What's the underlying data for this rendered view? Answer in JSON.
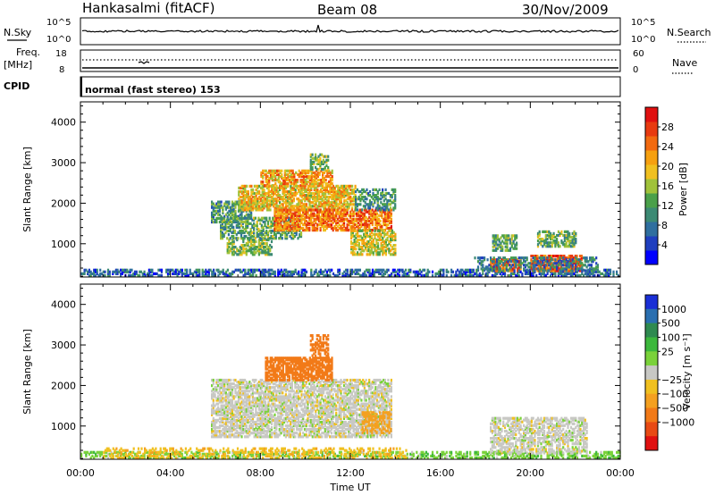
{
  "header": {
    "station": "Hankasalmi (fitACF)",
    "beam": "Beam 08",
    "date": "30/Nov/2009"
  },
  "strips": {
    "nsky_label": "N.Sky",
    "nsky_top": "10^5",
    "nsky_bottom": "10^0",
    "nsearch_label": "N.Search",
    "freq_label": "Freq.",
    "freq_unit": "[MHz]",
    "freq_top": "18",
    "freq_bottom": "8",
    "nave_top": "60",
    "nave_bottom": "0",
    "nave_label": "Nave",
    "cpid_label": "CPID",
    "cpid_text": "normal (fast stereo) 153"
  },
  "colors": {
    "power_scale": [
      "#0000ff",
      "#1f3fbf",
      "#2f6f9f",
      "#3c8a74",
      "#4aa04a",
      "#a0c23a",
      "#f0c020",
      "#f6a010",
      "#f26a10",
      "#e83a10",
      "#e01010"
    ],
    "velocity_scale": [
      "#1a2fd6",
      "#2a6fb0",
      "#2f8a50",
      "#3cb83c",
      "#7ad23a",
      "#c8c8c4",
      "#f0c020",
      "#f4a020",
      "#f27a18",
      "#e84a14",
      "#e01010"
    ]
  },
  "chart_data": [
    {
      "type": "heatmap",
      "title": "",
      "ylabel": "Slant Range [km]",
      "xlabel": "",
      "ylim": [
        180,
        4500
      ],
      "yticks": [
        1000,
        2000,
        3000,
        4000
      ],
      "x_ticks": [
        "00:00",
        "04:00",
        "08:00",
        "12:00",
        "16:00",
        "20:00",
        "00:00"
      ],
      "x_range_hours": [
        0,
        24
      ],
      "colorbar": {
        "label": "Power [dB]",
        "range": [
          0,
          32
        ],
        "ticks": [
          "4",
          "8",
          "12",
          "16",
          "20",
          "24",
          "28"
        ]
      },
      "regions": [
        {
          "t0": 0.0,
          "t1": 24.0,
          "r0": 180,
          "r1": 320,
          "value": 6,
          "density": 0.55
        },
        {
          "t0": 5.8,
          "t1": 7.6,
          "r0": 1500,
          "r1": 2000,
          "value": 10,
          "density": 0.6
        },
        {
          "t0": 6.5,
          "t1": 8.5,
          "r0": 700,
          "r1": 1100,
          "value": 14,
          "density": 0.6
        },
        {
          "t0": 6.2,
          "t1": 9.8,
          "r0": 1100,
          "r1": 1600,
          "value": 12,
          "density": 0.55
        },
        {
          "t0": 7.0,
          "t1": 12.2,
          "r0": 1800,
          "r1": 2400,
          "value": 20,
          "density": 0.7
        },
        {
          "t0": 8.0,
          "t1": 11.2,
          "r0": 2400,
          "r1": 2800,
          "value": 22,
          "density": 0.65
        },
        {
          "t0": 8.6,
          "t1": 13.8,
          "r0": 1300,
          "r1": 1800,
          "value": 25,
          "density": 0.7
        },
        {
          "t0": 12.0,
          "t1": 14.0,
          "r0": 700,
          "r1": 1300,
          "value": 18,
          "density": 0.6
        },
        {
          "t0": 10.2,
          "t1": 11.0,
          "r0": 2800,
          "r1": 3200,
          "value": 14,
          "density": 0.5
        },
        {
          "t0": 12.2,
          "t1": 14.0,
          "r0": 1800,
          "r1": 2300,
          "value": 10,
          "density": 0.5
        },
        {
          "t0": 18.2,
          "t1": 19.6,
          "r0": 300,
          "r1": 600,
          "value": 27,
          "density": 0.75
        },
        {
          "t0": 18.3,
          "t1": 19.4,
          "r0": 800,
          "r1": 1200,
          "value": 12,
          "density": 0.6
        },
        {
          "t0": 20.0,
          "t1": 22.3,
          "r0": 300,
          "r1": 700,
          "value": 28,
          "density": 0.8
        },
        {
          "t0": 20.3,
          "t1": 22.0,
          "r0": 900,
          "r1": 1300,
          "value": 13,
          "density": 0.6
        },
        {
          "t0": 17.5,
          "t1": 23.0,
          "r0": 300,
          "r1": 650,
          "value": 8,
          "density": 0.4
        }
      ]
    },
    {
      "type": "heatmap",
      "title": "",
      "ylabel": "Slant Range [km]",
      "xlabel": "Time UT",
      "ylim": [
        180,
        4500
      ],
      "yticks": [
        1000,
        2000,
        3000,
        4000
      ],
      "x_ticks": [
        "00:00",
        "04:00",
        "08:00",
        "12:00",
        "16:00",
        "20:00",
        "00:00"
      ],
      "x_range_hours": [
        0,
        24
      ],
      "colorbar": {
        "label": "Velocity [m s⁻¹]",
        "ticks": [
          "1000",
          "500",
          "100",
          "25",
          "−25",
          "−100",
          "−500",
          "−1000"
        ]
      },
      "regions": [
        {
          "t0": 0.0,
          "t1": 24.0,
          "r0": 180,
          "r1": 350,
          "value": 50,
          "density": 0.5
        },
        {
          "t0": 5.8,
          "t1": 13.8,
          "r0": 700,
          "r1": 2100,
          "value": 0,
          "density": 0.65
        },
        {
          "t0": 8.2,
          "t1": 11.2,
          "r0": 2100,
          "r1": 2650,
          "value": -300,
          "density": 0.75
        },
        {
          "t0": 10.2,
          "t1": 11.0,
          "r0": 2700,
          "r1": 3200,
          "value": -300,
          "density": 0.5
        },
        {
          "t0": 12.5,
          "t1": 13.8,
          "r0": 800,
          "r1": 1300,
          "value": -150,
          "density": 0.5
        },
        {
          "t0": 18.2,
          "t1": 22.5,
          "r0": 300,
          "r1": 1200,
          "value": 0,
          "density": 0.55
        },
        {
          "t0": 1.0,
          "t1": 14.5,
          "r0": 180,
          "r1": 420,
          "value": -80,
          "density": 0.3
        }
      ]
    }
  ]
}
